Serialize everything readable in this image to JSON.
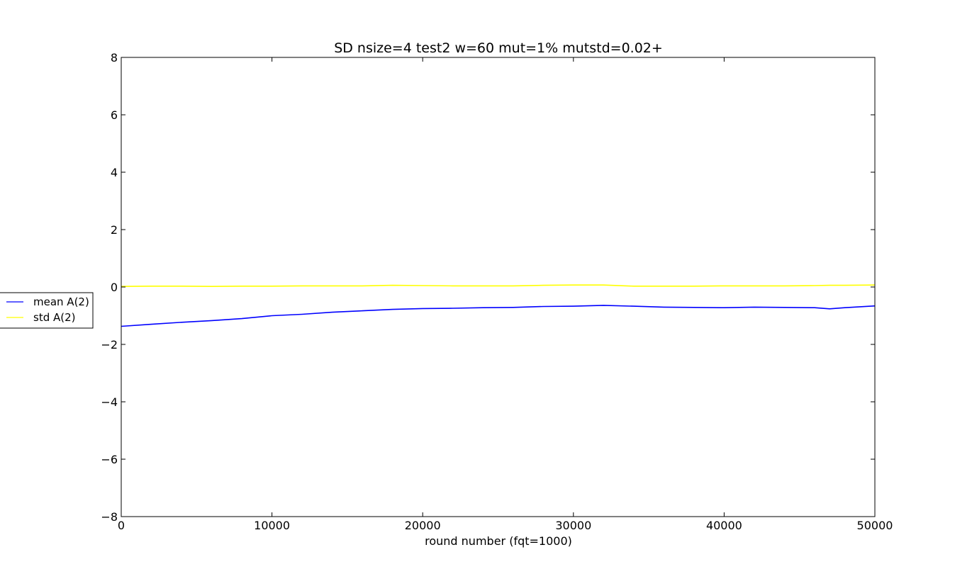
{
  "chart_data": {
    "type": "line",
    "title": "SD nsize=4 test2 w=60 mut=1% mutstd=0.02+",
    "xlabel": "round number (fqt=1000)",
    "ylabel": "",
    "xlim": [
      0,
      50000
    ],
    "ylim": [
      -8,
      8
    ],
    "xticks": [
      "0",
      "10000",
      "20000",
      "30000",
      "40000",
      "50000"
    ],
    "yticks": [
      "−8",
      "−6",
      "−4",
      "−2",
      "0",
      "2",
      "4",
      "6",
      "8"
    ],
    "grid": false,
    "legend_position": "left, outside plot",
    "x": [
      0,
      2000,
      4000,
      6000,
      8000,
      10000,
      12000,
      14000,
      16000,
      18000,
      20000,
      22000,
      24000,
      26000,
      28000,
      30000,
      32000,
      34000,
      36000,
      38000,
      40000,
      42000,
      44000,
      46000,
      47000,
      48000,
      50000
    ],
    "series": [
      {
        "name": "mean A(2)",
        "color": "#0000ff",
        "values": [
          -1.37,
          -1.3,
          -1.23,
          -1.17,
          -1.1,
          -1.0,
          -0.95,
          -0.88,
          -0.83,
          -0.78,
          -0.75,
          -0.74,
          -0.72,
          -0.71,
          -0.68,
          -0.67,
          -0.64,
          -0.67,
          -0.7,
          -0.71,
          -0.72,
          -0.7,
          -0.71,
          -0.72,
          -0.76,
          -0.72,
          -0.66
        ]
      },
      {
        "name": "std A(2)",
        "color": "#ffff00",
        "values": [
          0.02,
          0.03,
          0.03,
          0.02,
          0.03,
          0.03,
          0.04,
          0.04,
          0.04,
          0.06,
          0.05,
          0.04,
          0.04,
          0.04,
          0.06,
          0.07,
          0.07,
          0.03,
          0.03,
          0.03,
          0.04,
          0.04,
          0.04,
          0.05,
          0.06,
          0.06,
          0.07
        ]
      }
    ]
  }
}
